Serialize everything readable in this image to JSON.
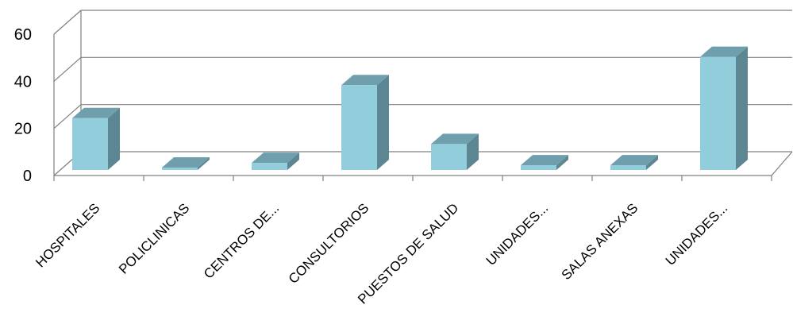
{
  "chart_data": {
    "type": "bar",
    "style": "3d-column",
    "categories": [
      "HOSPITALES",
      "POLICLINICAS",
      "CENTROS DE...",
      "CONSULTORIOS",
      "PUESTOS DE SALUD",
      "UNIDADES...",
      "SALAS ANEXAS",
      "UNIDADES..."
    ],
    "values": [
      22,
      1,
      3,
      36,
      11,
      2,
      2,
      48
    ],
    "yticks": [
      0,
      20,
      40,
      60
    ],
    "ylim": [
      0,
      60
    ],
    "grid": true,
    "legend": "none",
    "colors": {
      "bar_front": "#92cddc",
      "bar_top": "#6f9fad",
      "bar_side": "#5b8692",
      "grid": "#808080"
    }
  }
}
